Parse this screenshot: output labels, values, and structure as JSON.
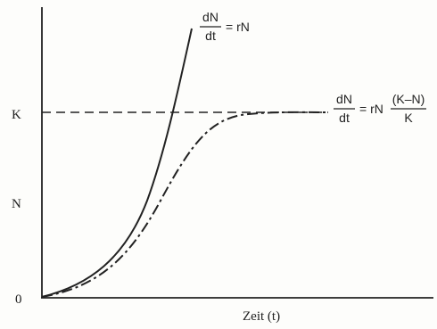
{
  "y_axis_labels": [
    "K",
    "N",
    "0"
  ],
  "x_axis_label": "Zeit (t)",
  "exponential_equation": {
    "numerator": "dN",
    "denominator": "dt",
    "rhs": "= rN"
  },
  "logistic_equation": {
    "numerator": "dN",
    "denominator": "dt",
    "rhs": "= rN",
    "factor_numerator": "(K–N)",
    "factor_denominator": "K"
  }
}
